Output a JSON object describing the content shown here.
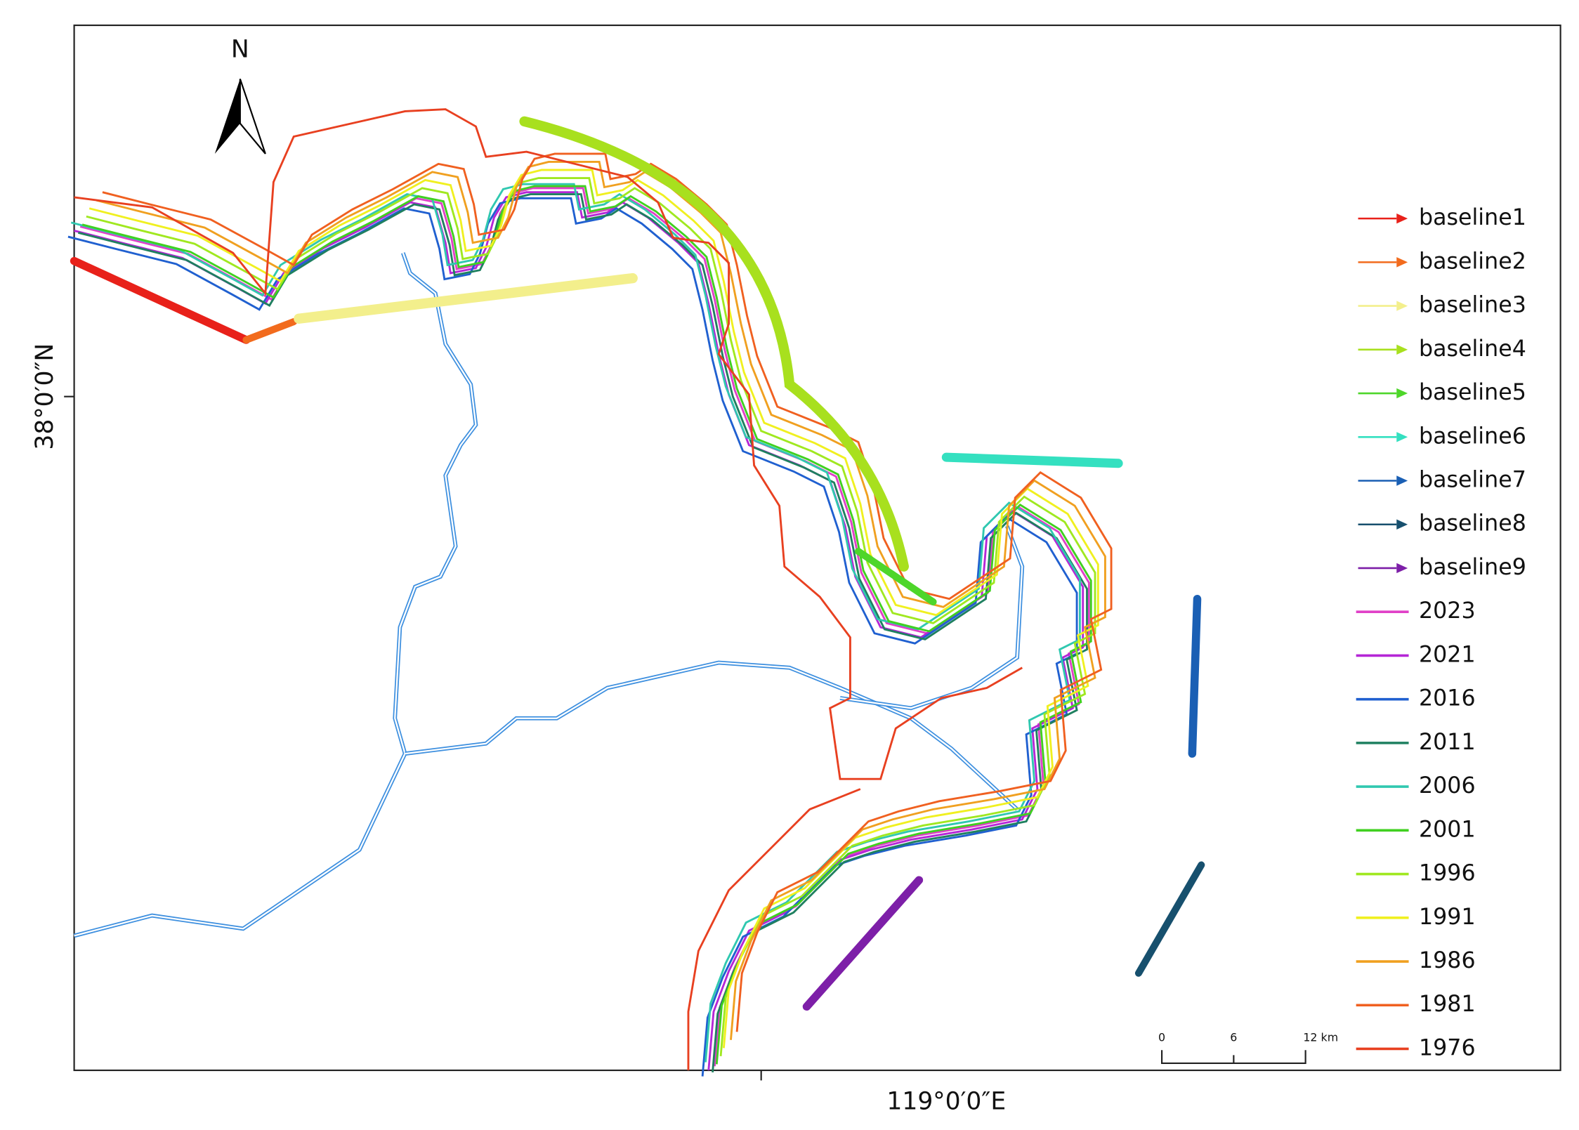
{
  "north": "N",
  "lat_label": "38°0′0″N",
  "lon_label": "119°0′0″E",
  "scale_bar": {
    "labels": [
      "0",
      "6",
      "12 km"
    ]
  },
  "legend": [
    {
      "label": "baseline1",
      "color": "#e8211a"
    },
    {
      "label": "baseline2",
      "color": "#f26b1d"
    },
    {
      "label": "baseline3",
      "color": "#f3ef8c"
    },
    {
      "label": "baseline4",
      "color": "#a8e01e"
    },
    {
      "label": "baseline5",
      "color": "#4ed62a"
    },
    {
      "label": "baseline6",
      "color": "#34e0c0"
    },
    {
      "label": "baseline7",
      "color": "#1a5fb4"
    },
    {
      "label": "baseline8",
      "color": "#17506e"
    },
    {
      "label": "baseline9",
      "color": "#7d1fa8"
    },
    {
      "label": "2023",
      "color": "#e040c8"
    },
    {
      "label": "2021",
      "color": "#b526d6"
    },
    {
      "label": "2016",
      "color": "#2060d0"
    },
    {
      "label": "2011",
      "color": "#1f8060"
    },
    {
      "label": "2006",
      "color": "#30c8b0"
    },
    {
      "label": "2001",
      "color": "#40d020"
    },
    {
      "label": "1996",
      "color": "#a0e820"
    },
    {
      "label": "1991",
      "color": "#f0f020"
    },
    {
      "label": "1986",
      "color": "#f0a020"
    },
    {
      "label": "1981",
      "color": "#f06020"
    },
    {
      "label": "1976",
      "color": "#e84020"
    }
  ]
}
